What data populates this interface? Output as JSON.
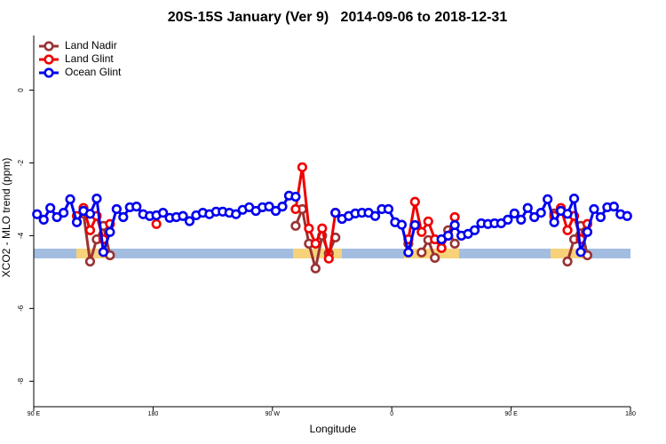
{
  "chart_data": {
    "type": "line",
    "title": "20S-15S January (Ver 9)   2014-09-06 to 2018-12-31",
    "x_label": "Longitude",
    "y_label": "XCO2 - MLO trend (ppm)",
    "x": [
      92.5,
      97.5,
      102.5,
      107.5,
      112.5,
      117.5,
      122.5,
      127.5,
      132.5,
      137.5,
      142.5,
      147.5,
      152.5,
      157.5,
      162.5,
      167.5,
      172.5,
      177.5,
      182.5,
      187.5,
      192.5,
      197.5,
      202.5,
      207.5,
      212.5,
      217.5,
      222.5,
      227.5,
      232.5,
      237.5,
      242.5,
      247.5,
      252.5,
      257.5,
      262.5,
      267.5,
      272.5,
      277.5,
      282.5,
      287.5,
      292.5,
      297.5,
      302.5,
      307.5,
      312.5,
      317.5,
      322.5,
      327.5,
      332.5,
      337.5,
      342.5,
      347.5,
      352.5,
      357.5,
      362.5,
      367.5,
      372.5,
      377.5,
      382.5,
      387.5,
      392.5,
      397.5,
      402.5,
      407.5,
      412.5,
      417.5,
      422.5,
      427.5,
      432.5,
      437.5,
      442.5,
      447.5,
      452.5,
      457.5,
      462.5,
      467.5,
      472.5,
      477.5,
      482.5,
      487.5,
      492.5,
      497.5,
      502.5,
      507.5,
      512.5,
      517.5,
      522.5,
      527.5,
      532.5,
      537.5
    ],
    "series": [
      {
        "name": "Land Nadir",
        "color": "#993333",
        "values": [
          null,
          null,
          null,
          null,
          null,
          null,
          null,
          -3.39,
          -4.71,
          -4.1,
          -3.73,
          -4.54,
          null,
          null,
          null,
          null,
          null,
          null,
          null,
          null,
          null,
          null,
          null,
          null,
          null,
          null,
          null,
          null,
          null,
          null,
          null,
          null,
          null,
          null,
          null,
          null,
          null,
          null,
          null,
          -3.73,
          -3.27,
          -4.22,
          -4.9,
          -4.0,
          -4.49,
          -4.05,
          null,
          null,
          null,
          null,
          null,
          null,
          null,
          null,
          null,
          null,
          -4.22,
          null,
          -4.46,
          -4.12,
          -4.61,
          null,
          -3.85,
          -4.22,
          null,
          null,
          null,
          null,
          null,
          null,
          null,
          null,
          null,
          null,
          null,
          null,
          null,
          null,
          -3.39,
          null,
          -4.71,
          -4.1,
          -3.73,
          -4.54,
          null,
          null,
          null,
          null,
          null,
          null
        ]
      },
      {
        "name": "Land Glint",
        "color": "#ee0000",
        "values": [
          null,
          null,
          null,
          null,
          null,
          null,
          -3.46,
          -3.24,
          -3.85,
          -3.46,
          -4.1,
          -3.68,
          null,
          null,
          null,
          null,
          null,
          null,
          -3.68,
          null,
          null,
          null,
          null,
          null,
          null,
          null,
          null,
          null,
          null,
          null,
          null,
          null,
          null,
          null,
          null,
          null,
          null,
          null,
          null,
          -3.27,
          -2.12,
          -3.8,
          -4.22,
          -3.8,
          -4.63,
          -3.37,
          null,
          null,
          null,
          null,
          null,
          null,
          null,
          null,
          null,
          null,
          -4.1,
          -3.07,
          -3.9,
          -3.61,
          -4.1,
          -4.34,
          -4.0,
          -3.49,
          null,
          null,
          null,
          null,
          null,
          null,
          null,
          null,
          null,
          null,
          null,
          null,
          null,
          null,
          -3.46,
          -3.24,
          -3.85,
          -3.46,
          -4.1,
          -3.68,
          null,
          null,
          null,
          null,
          null,
          null
        ]
      },
      {
        "name": "Ocean Glint",
        "color": "#0000ee",
        "values": [
          -3.41,
          -3.56,
          -3.24,
          -3.49,
          -3.37,
          -3.0,
          -3.63,
          -3.32,
          -3.4,
          -2.98,
          -4.45,
          -3.9,
          -3.27,
          -3.49,
          -3.22,
          -3.2,
          -3.41,
          -3.46,
          -3.44,
          -3.37,
          -3.51,
          -3.49,
          -3.46,
          -3.6,
          -3.44,
          -3.37,
          -3.41,
          -3.34,
          -3.34,
          -3.37,
          -3.41,
          -3.29,
          -3.22,
          -3.32,
          -3.22,
          -3.2,
          -3.32,
          -3.2,
          -2.9,
          -2.93,
          null,
          null,
          null,
          null,
          null,
          -3.37,
          -3.54,
          -3.46,
          -3.39,
          -3.37,
          -3.37,
          -3.46,
          -3.27,
          -3.27,
          -3.63,
          -3.7,
          -4.46,
          -3.71,
          null,
          null,
          null,
          -4.1,
          -4.0,
          -3.71,
          -4.0,
          -3.95,
          -3.85,
          -3.66,
          -3.68,
          -3.66,
          -3.66,
          -3.56,
          -3.39,
          -3.56,
          -3.24,
          -3.49,
          -3.37,
          -3.0,
          -3.63,
          -3.32,
          -3.4,
          -2.98,
          -4.45,
          -3.9,
          -3.27,
          -3.49,
          -3.22,
          -3.2,
          -3.41,
          -3.46
        ]
      }
    ],
    "xlim": [
      90,
      540
    ],
    "xticks": [
      {
        "value": 90,
        "label": "90 E"
      },
      {
        "value": 180,
        "label": "180"
      },
      {
        "value": 270,
        "label": "90 W"
      },
      {
        "value": 360,
        "label": "0"
      },
      {
        "value": 450,
        "label": "90 E"
      },
      {
        "value": 540,
        "label": "180"
      }
    ],
    "ylim": [
      -8.7,
      1.5
    ],
    "yticks": [
      0,
      -2,
      -4,
      -6,
      -8
    ],
    "legend": "top-left"
  }
}
